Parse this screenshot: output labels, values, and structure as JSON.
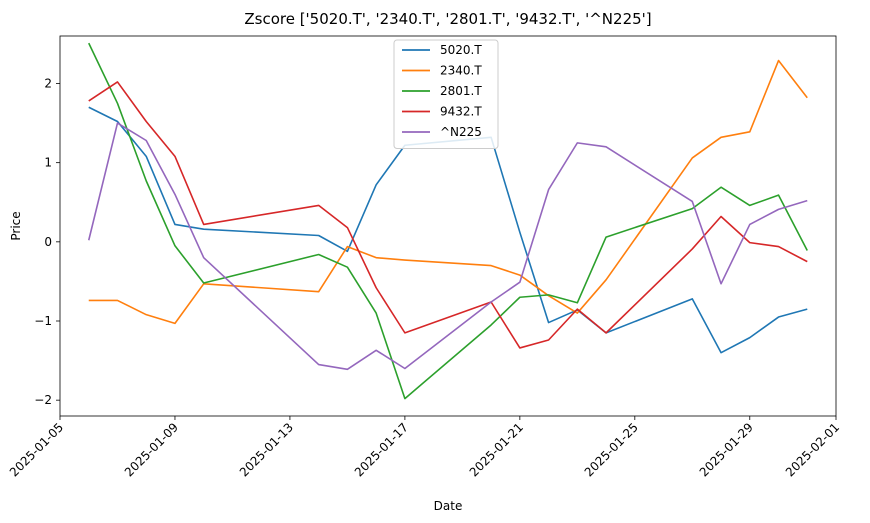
{
  "chart_data": {
    "type": "line",
    "title": "Zscore ['5020.T', '2340.T', '2801.T', '9432.T', '^N225']",
    "xlabel": "Date",
    "ylabel": "Price",
    "x_type": "date",
    "xlim": [
      "2025-01-05",
      "2025-02-01"
    ],
    "ylim": [
      -2.2,
      2.6
    ],
    "x_ticks": [
      "2025-01-05",
      "2025-01-09",
      "2025-01-13",
      "2025-01-17",
      "2025-01-21",
      "2025-01-25",
      "2025-01-29",
      "2025-02-01"
    ],
    "y_ticks": [
      -2,
      -1,
      0,
      1,
      2
    ],
    "grid": false,
    "legend_position": "top-center",
    "x": [
      "2025-01-06",
      "2025-01-07",
      "2025-01-08",
      "2025-01-09",
      "2025-01-10",
      "2025-01-14",
      "2025-01-15",
      "2025-01-16",
      "2025-01-17",
      "2025-01-20",
      "2025-01-21",
      "2025-01-22",
      "2025-01-23",
      "2025-01-24",
      "2025-01-27",
      "2025-01-28",
      "2025-01-29",
      "2025-01-30",
      "2025-01-31"
    ],
    "series": [
      {
        "name": "5020.T",
        "color": "#1f77b4",
        "values": [
          1.7,
          1.52,
          1.08,
          0.22,
          0.16,
          0.08,
          -0.12,
          0.72,
          1.22,
          1.32,
          0.12,
          -1.02,
          -0.86,
          -1.15,
          -0.72,
          -1.4,
          -1.21,
          -0.95,
          -0.85
        ]
      },
      {
        "name": "2340.T",
        "color": "#ff7f0e",
        "values": [
          -0.74,
          -0.74,
          -0.92,
          -1.03,
          -0.53,
          -0.63,
          -0.06,
          -0.2,
          -0.23,
          -0.3,
          -0.42,
          -0.68,
          -0.9,
          -0.48,
          1.06,
          1.32,
          1.39,
          2.29,
          1.82
        ]
      },
      {
        "name": "2801.T",
        "color": "#2ca02c",
        "values": [
          2.51,
          1.75,
          0.77,
          -0.05,
          -0.52,
          -0.16,
          -0.32,
          -0.9,
          -1.98,
          -1.05,
          -0.7,
          -0.67,
          -0.77,
          0.06,
          0.42,
          0.69,
          0.46,
          0.59,
          -0.11
        ]
      },
      {
        "name": "9432.T",
        "color": "#d62728",
        "values": [
          1.78,
          2.02,
          1.52,
          1.08,
          0.22,
          0.46,
          0.18,
          -0.58,
          -1.15,
          -0.76,
          -1.34,
          -1.24,
          -0.85,
          -1.15,
          -0.09,
          0.32,
          -0.01,
          -0.06,
          -0.25
        ]
      },
      {
        "name": "^N225",
        "color": "#9467bd",
        "values": [
          0.02,
          1.5,
          1.28,
          0.6,
          -0.2,
          -1.55,
          -1.61,
          -1.37,
          -1.6,
          -0.76,
          -0.51,
          0.66,
          1.25,
          1.2,
          0.51,
          -0.53,
          0.22,
          0.41,
          0.52
        ]
      }
    ]
  }
}
